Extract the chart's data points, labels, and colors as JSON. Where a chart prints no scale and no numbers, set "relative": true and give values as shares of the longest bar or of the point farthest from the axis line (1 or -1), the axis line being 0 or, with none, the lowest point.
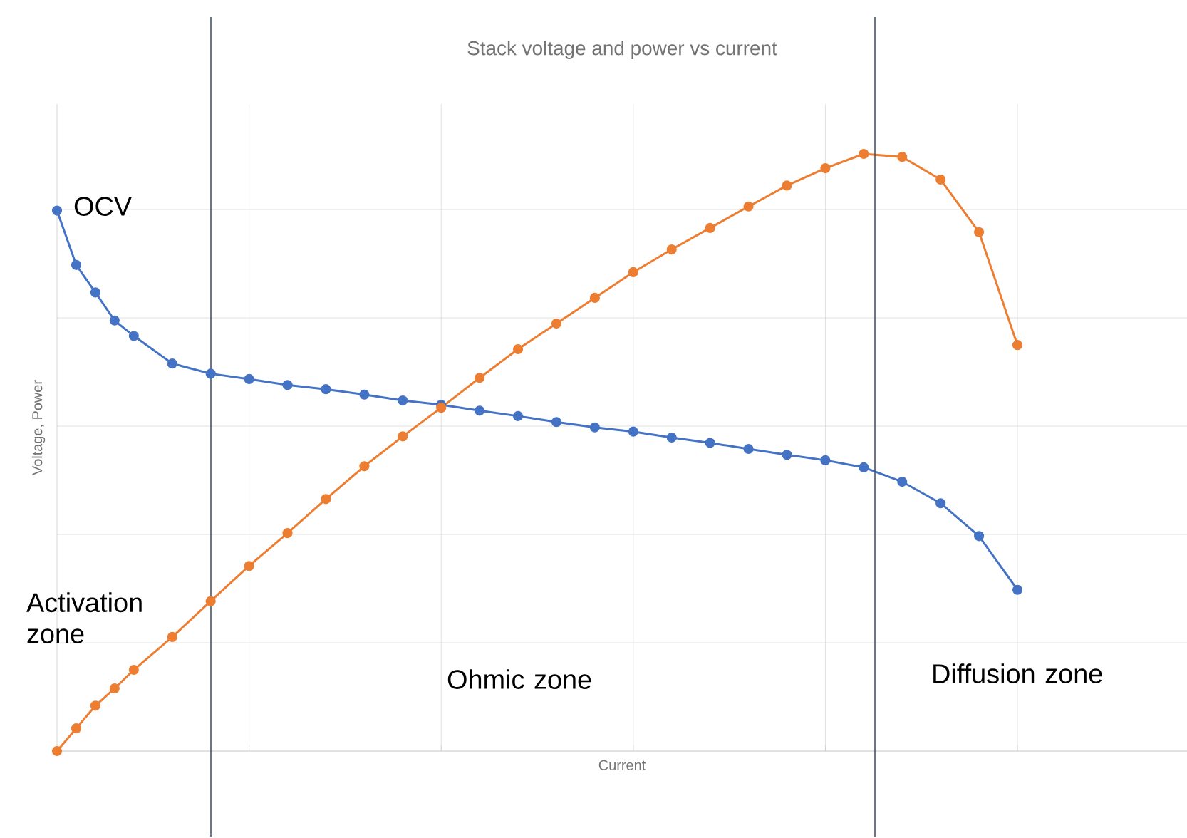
{
  "chart_data": {
    "type": "line",
    "title": "Stack voltage and power vs current",
    "xlabel": "Current",
    "ylabel": "Voltage, Power",
    "relative": true,
    "categories": [
      null,
      null,
      null,
      null,
      null,
      null,
      null,
      null,
      null,
      null,
      null,
      null,
      null,
      null,
      null,
      null,
      null,
      null,
      null,
      null,
      null,
      null,
      null,
      null,
      null,
      null,
      null,
      null,
      null,
      null,
      null,
      null,
      null,
      null,
      null,
      null,
      null,
      null,
      null,
      null,
      null,
      null,
      null,
      null,
      null,
      null,
      null,
      null,
      null,
      null,
      null
    ],
    "grid": true,
    "marker": "circle",
    "line_style": "solid",
    "series": [
      {
        "color": "#4472c4",
        "values": [
          0.905,
          0.814,
          0.768,
          0.721,
          0.695,
          null,
          0.649,
          null,
          0.632,
          null,
          0.623,
          null,
          0.613,
          null,
          0.606,
          null,
          0.597,
          null,
          0.587,
          null,
          0.58,
          null,
          0.57,
          null,
          0.561,
          null,
          0.551,
          null,
          0.542,
          null,
          0.535,
          null,
          0.525,
          null,
          0.516,
          null,
          0.506,
          null,
          0.496,
          null,
          0.487,
          null,
          0.475,
          null,
          0.451,
          null,
          0.415,
          null,
          0.36,
          null,
          0.27
        ]
      },
      {
        "color": "#ed7d31",
        "values": [
          0,
          0.038,
          0.076,
          0.105,
          0.136,
          null,
          0.191,
          null,
          0.251,
          null,
          0.31,
          null,
          0.365,
          null,
          0.422,
          null,
          0.477,
          null,
          0.527,
          null,
          0.575,
          null,
          0.625,
          null,
          0.673,
          null,
          0.716,
          null,
          0.759,
          null,
          0.802,
          null,
          0.84,
          null,
          0.876,
          null,
          0.912,
          null,
          0.947,
          null,
          0.976,
          null,
          1.0,
          null,
          0.995,
          null,
          0.957,
          null,
          0.869,
          null,
          0.68
        ]
      }
    ],
    "annotations": [
      "OCV",
      "Activation zone",
      "Ohmic zone",
      "Diffusion zone"
    ]
  }
}
